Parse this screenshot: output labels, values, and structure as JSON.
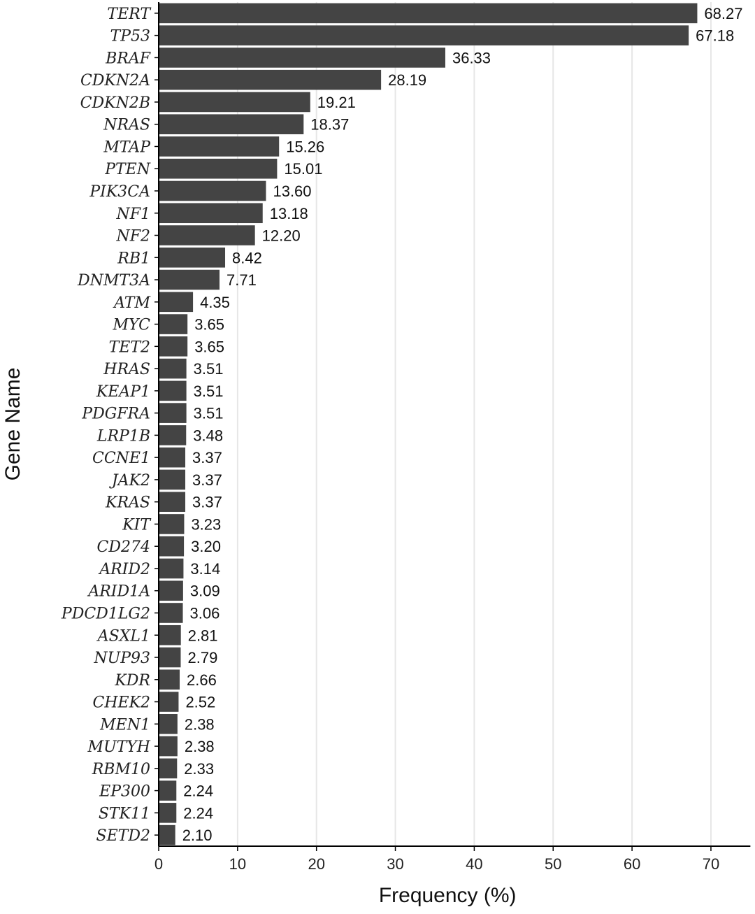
{
  "chart_data": {
    "type": "bar",
    "orientation": "horizontal",
    "xlabel": "Frequency (%)",
    "ylabel": "Gene Name",
    "xlim": [
      0,
      75
    ],
    "xticks": [
      0,
      10,
      20,
      30,
      40,
      50,
      60,
      70
    ],
    "grid": "vertical major gridlines",
    "legend": "none",
    "categories": [
      "TERT",
      "TP53",
      "BRAF",
      "CDKN2A",
      "CDKN2B",
      "NRAS",
      "MTAP",
      "PTEN",
      "PIK3CA",
      "NF1",
      "NF2",
      "RB1",
      "DNMT3A",
      "ATM",
      "MYC",
      "TET2",
      "HRAS",
      "KEAP1",
      "PDGFRA",
      "LRP1B",
      "CCNE1",
      "JAK2",
      "KRAS",
      "KIT",
      "CD274",
      "ARID2",
      "ARID1A",
      "PDCD1LG2",
      "ASXL1",
      "NUP93",
      "KDR",
      "CHEK2",
      "MEN1",
      "MUTYH",
      "RBM10",
      "EP300",
      "STK11",
      "SETD2"
    ],
    "values": [
      68.27,
      67.18,
      36.33,
      28.19,
      19.21,
      18.37,
      15.26,
      15.01,
      13.6,
      13.18,
      12.2,
      8.42,
      7.71,
      4.35,
      3.65,
      3.65,
      3.51,
      3.51,
      3.51,
      3.48,
      3.37,
      3.37,
      3.37,
      3.23,
      3.2,
      3.14,
      3.09,
      3.06,
      2.81,
      2.79,
      2.66,
      2.52,
      2.38,
      2.38,
      2.33,
      2.24,
      2.24,
      2.1
    ],
    "value_labels": [
      "68.27",
      "67.18",
      "36.33",
      "28.19",
      "19.21",
      "18.37",
      "15.26",
      "15.01",
      "13.60",
      "13.18",
      "12.20",
      "8.42",
      "7.71",
      "4.35",
      "3.65",
      "3.65",
      "3.51",
      "3.51",
      "3.51",
      "3.48",
      "3.37",
      "3.37",
      "3.37",
      "3.23",
      "3.20",
      "3.14",
      "3.09",
      "3.06",
      "2.81",
      "2.79",
      "2.66",
      "2.52",
      "2.38",
      "2.38",
      "2.33",
      "2.24",
      "2.24",
      "2.10"
    ],
    "colors": {
      "bar": "#444444",
      "grid": "#e6e6e6",
      "axis": "#000000"
    }
  }
}
